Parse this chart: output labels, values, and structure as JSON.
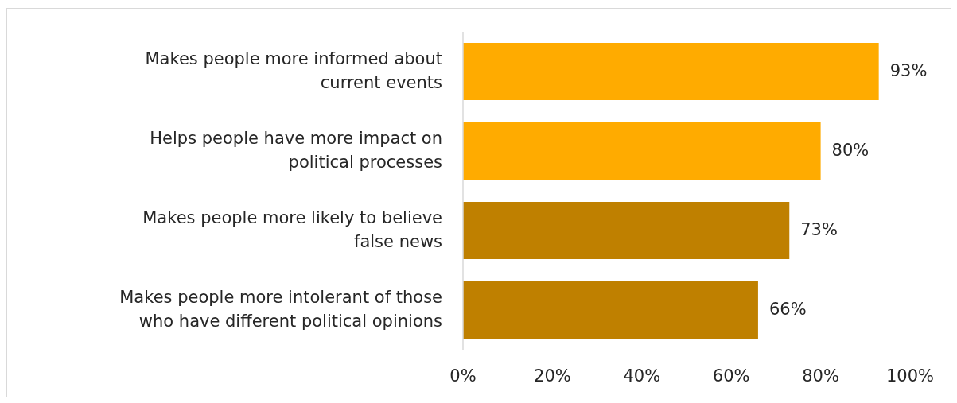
{
  "chart_data": {
    "type": "bar",
    "orientation": "horizontal",
    "categories": [
      "Makes people more informed about current events",
      "Helps people have more impact on political processes",
      "Makes people more likely to believe false news",
      "Makes people more intolerant of those who have different political opinions"
    ],
    "values": [
      93,
      80,
      73,
      66
    ],
    "colors": [
      "#ffab00",
      "#ffab00",
      "#bf8000",
      "#bf8000"
    ],
    "value_labels": [
      "93%",
      "80%",
      "73%",
      "66%"
    ],
    "xlim": [
      0,
      100
    ],
    "xticks": [
      {
        "value": 0,
        "label": "0%"
      },
      {
        "value": 20,
        "label": "20%"
      },
      {
        "value": 40,
        "label": "40%"
      },
      {
        "value": 60,
        "label": "60%"
      },
      {
        "value": 80,
        "label": "80%"
      },
      {
        "value": 100,
        "label": "100%"
      }
    ],
    "grid": false
  }
}
